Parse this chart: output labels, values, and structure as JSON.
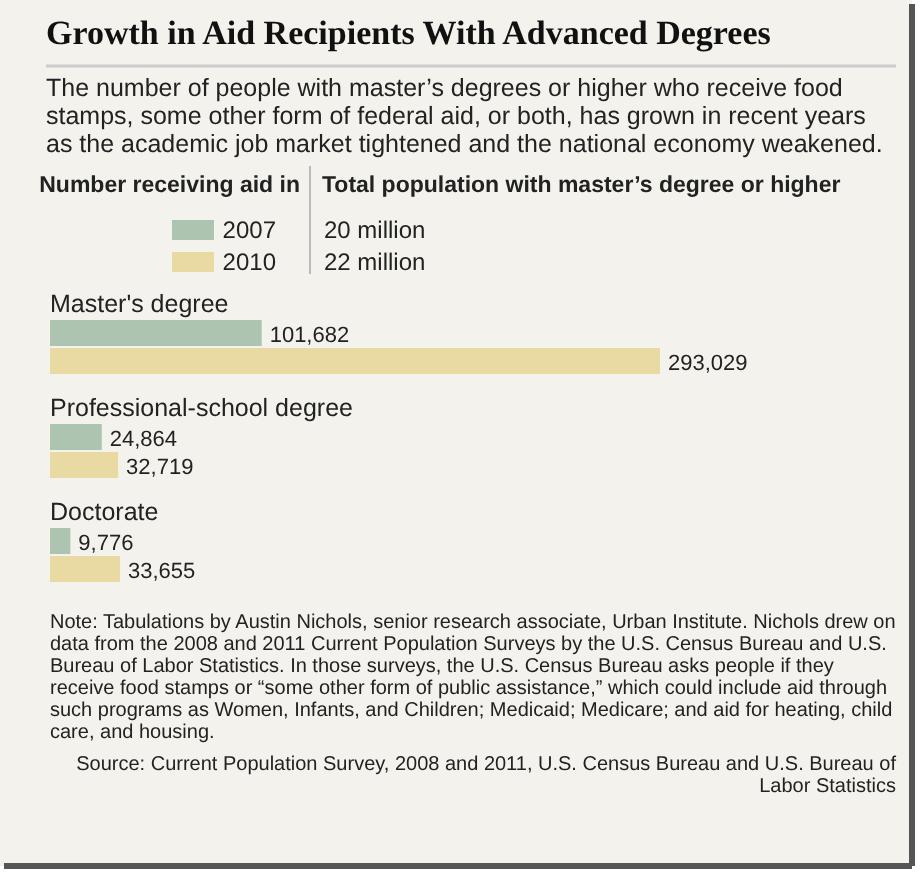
{
  "chart_data": {
    "type": "bar",
    "orientation": "horizontal",
    "title": "Growth in Aid Recipients With Advanced Degrees",
    "subtitle": "The number of people with master’s degrees or higher who receive food stamps, some other form of federal aid, or both, has grown in recent years as the academic job market tightened and the national economy weakened.",
    "legend_title": "Number receiving aid in",
    "legend": "top left",
    "categories": [
      "Master's degree",
      "Professional-school degree",
      "Doctorate"
    ],
    "series": [
      {
        "name": "2007",
        "color": "#adc4b0",
        "values": [
          101682,
          24864,
          9776
        ],
        "value_labels": [
          "101,682",
          "24,864",
          "9,776"
        ]
      },
      {
        "name": "2010",
        "color": "#e9d9a3",
        "values": [
          293029,
          32719,
          33655
        ],
        "value_labels": [
          "293,029",
          "32,719",
          "33,655"
        ]
      }
    ],
    "annotations": [
      "Total population with master’s degree or higher",
      "20 million",
      "22 million",
      "Note: Tabulations by Austin Nichols, senior research associate, Urban Institute. Nichols drew on data from the 2008 and 2011 Current Population Surveys by the U.S. Census Bureau and U.S. Bureau of Labor Statistics. In those surveys, the U.S. Census Bureau asks people if they receive food stamps or “some other form of public assistance,” which could include aid through such programs as Women, Infants, and Children; Medicaid; Medicare; and aid for heating, child care, and housing.",
      "Source: Current Population Survey, 2008 and 2011, U.S. Census Bureau and U.S. Bureau of Labor Statistics"
    ]
  }
}
